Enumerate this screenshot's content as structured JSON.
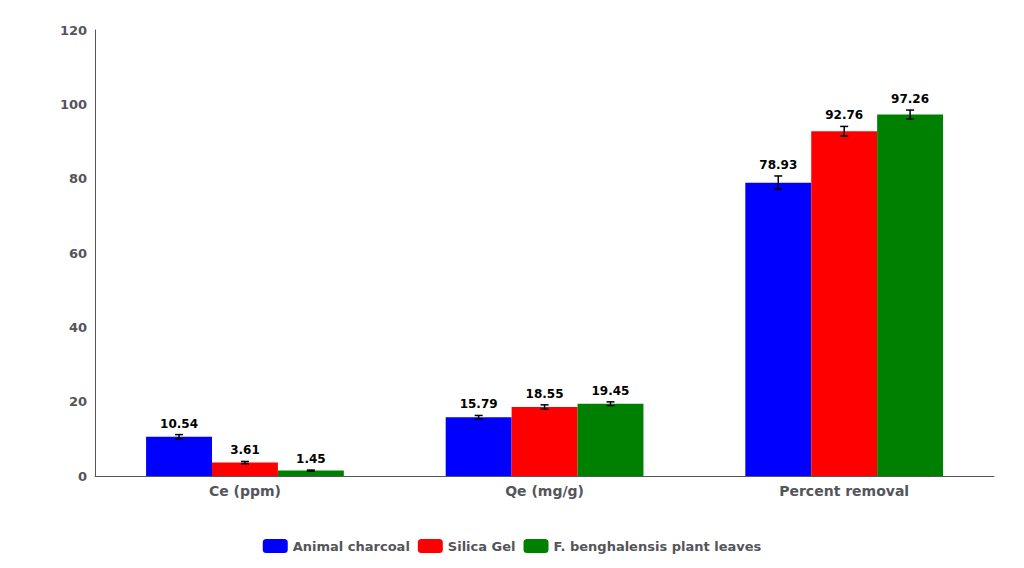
{
  "chart_data": {
    "type": "bar",
    "categories": [
      "Ce (ppm)",
      "Qe (mg/g)",
      "Percent removal"
    ],
    "series": [
      {
        "name": "Animal charcoal",
        "color": "#0000FF",
        "values": [
          10.54,
          15.79,
          78.93
        ],
        "errors": [
          0.6,
          0.5,
          1.8
        ]
      },
      {
        "name": "Silica Gel",
        "color": "#FF0000",
        "values": [
          3.61,
          18.55,
          92.76
        ],
        "errors": [
          0.3,
          0.6,
          1.3
        ]
      },
      {
        "name": "F. benghalensis plant leaves",
        "color": "#008000",
        "values": [
          1.45,
          19.45,
          97.26
        ],
        "errors": [
          0.15,
          0.5,
          1.2
        ]
      }
    ],
    "ylim": [
      0,
      120
    ],
    "yticks": [
      0,
      20,
      40,
      60,
      80,
      100,
      120
    ],
    "grid": false,
    "legend": "bottom",
    "data_labels": true
  }
}
